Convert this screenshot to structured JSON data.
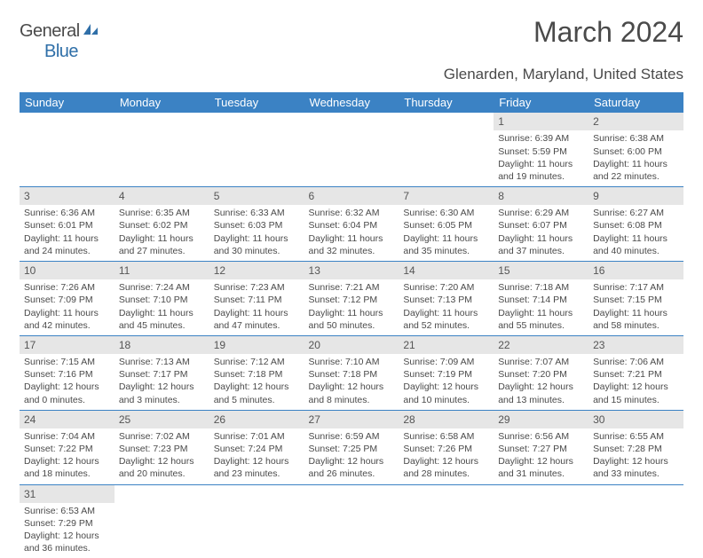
{
  "logo": {
    "first": "General",
    "second": "Blue"
  },
  "title": "March 2024",
  "location": "Glenarden, Maryland, United States",
  "weekdays": [
    "Sunday",
    "Monday",
    "Tuesday",
    "Wednesday",
    "Thursday",
    "Friday",
    "Saturday"
  ],
  "colors": {
    "header_bg": "#3b82c4",
    "header_text": "#ffffff",
    "daynum_bg": "#e6e6e6",
    "border": "#3b82c4",
    "text": "#4a4a4a"
  },
  "grid": [
    [
      null,
      null,
      null,
      null,
      null,
      {
        "n": "1",
        "sr": "Sunrise: 6:39 AM",
        "ss": "Sunset: 5:59 PM",
        "dl": "Daylight: 11 hours and 19 minutes."
      },
      {
        "n": "2",
        "sr": "Sunrise: 6:38 AM",
        "ss": "Sunset: 6:00 PM",
        "dl": "Daylight: 11 hours and 22 minutes."
      }
    ],
    [
      {
        "n": "3",
        "sr": "Sunrise: 6:36 AM",
        "ss": "Sunset: 6:01 PM",
        "dl": "Daylight: 11 hours and 24 minutes."
      },
      {
        "n": "4",
        "sr": "Sunrise: 6:35 AM",
        "ss": "Sunset: 6:02 PM",
        "dl": "Daylight: 11 hours and 27 minutes."
      },
      {
        "n": "5",
        "sr": "Sunrise: 6:33 AM",
        "ss": "Sunset: 6:03 PM",
        "dl": "Daylight: 11 hours and 30 minutes."
      },
      {
        "n": "6",
        "sr": "Sunrise: 6:32 AM",
        "ss": "Sunset: 6:04 PM",
        "dl": "Daylight: 11 hours and 32 minutes."
      },
      {
        "n": "7",
        "sr": "Sunrise: 6:30 AM",
        "ss": "Sunset: 6:05 PM",
        "dl": "Daylight: 11 hours and 35 minutes."
      },
      {
        "n": "8",
        "sr": "Sunrise: 6:29 AM",
        "ss": "Sunset: 6:07 PM",
        "dl": "Daylight: 11 hours and 37 minutes."
      },
      {
        "n": "9",
        "sr": "Sunrise: 6:27 AM",
        "ss": "Sunset: 6:08 PM",
        "dl": "Daylight: 11 hours and 40 minutes."
      }
    ],
    [
      {
        "n": "10",
        "sr": "Sunrise: 7:26 AM",
        "ss": "Sunset: 7:09 PM",
        "dl": "Daylight: 11 hours and 42 minutes."
      },
      {
        "n": "11",
        "sr": "Sunrise: 7:24 AM",
        "ss": "Sunset: 7:10 PM",
        "dl": "Daylight: 11 hours and 45 minutes."
      },
      {
        "n": "12",
        "sr": "Sunrise: 7:23 AM",
        "ss": "Sunset: 7:11 PM",
        "dl": "Daylight: 11 hours and 47 minutes."
      },
      {
        "n": "13",
        "sr": "Sunrise: 7:21 AM",
        "ss": "Sunset: 7:12 PM",
        "dl": "Daylight: 11 hours and 50 minutes."
      },
      {
        "n": "14",
        "sr": "Sunrise: 7:20 AM",
        "ss": "Sunset: 7:13 PM",
        "dl": "Daylight: 11 hours and 52 minutes."
      },
      {
        "n": "15",
        "sr": "Sunrise: 7:18 AM",
        "ss": "Sunset: 7:14 PM",
        "dl": "Daylight: 11 hours and 55 minutes."
      },
      {
        "n": "16",
        "sr": "Sunrise: 7:17 AM",
        "ss": "Sunset: 7:15 PM",
        "dl": "Daylight: 11 hours and 58 minutes."
      }
    ],
    [
      {
        "n": "17",
        "sr": "Sunrise: 7:15 AM",
        "ss": "Sunset: 7:16 PM",
        "dl": "Daylight: 12 hours and 0 minutes."
      },
      {
        "n": "18",
        "sr": "Sunrise: 7:13 AM",
        "ss": "Sunset: 7:17 PM",
        "dl": "Daylight: 12 hours and 3 minutes."
      },
      {
        "n": "19",
        "sr": "Sunrise: 7:12 AM",
        "ss": "Sunset: 7:18 PM",
        "dl": "Daylight: 12 hours and 5 minutes."
      },
      {
        "n": "20",
        "sr": "Sunrise: 7:10 AM",
        "ss": "Sunset: 7:18 PM",
        "dl": "Daylight: 12 hours and 8 minutes."
      },
      {
        "n": "21",
        "sr": "Sunrise: 7:09 AM",
        "ss": "Sunset: 7:19 PM",
        "dl": "Daylight: 12 hours and 10 minutes."
      },
      {
        "n": "22",
        "sr": "Sunrise: 7:07 AM",
        "ss": "Sunset: 7:20 PM",
        "dl": "Daylight: 12 hours and 13 minutes."
      },
      {
        "n": "23",
        "sr": "Sunrise: 7:06 AM",
        "ss": "Sunset: 7:21 PM",
        "dl": "Daylight: 12 hours and 15 minutes."
      }
    ],
    [
      {
        "n": "24",
        "sr": "Sunrise: 7:04 AM",
        "ss": "Sunset: 7:22 PM",
        "dl": "Daylight: 12 hours and 18 minutes."
      },
      {
        "n": "25",
        "sr": "Sunrise: 7:02 AM",
        "ss": "Sunset: 7:23 PM",
        "dl": "Daylight: 12 hours and 20 minutes."
      },
      {
        "n": "26",
        "sr": "Sunrise: 7:01 AM",
        "ss": "Sunset: 7:24 PM",
        "dl": "Daylight: 12 hours and 23 minutes."
      },
      {
        "n": "27",
        "sr": "Sunrise: 6:59 AM",
        "ss": "Sunset: 7:25 PM",
        "dl": "Daylight: 12 hours and 26 minutes."
      },
      {
        "n": "28",
        "sr": "Sunrise: 6:58 AM",
        "ss": "Sunset: 7:26 PM",
        "dl": "Daylight: 12 hours and 28 minutes."
      },
      {
        "n": "29",
        "sr": "Sunrise: 6:56 AM",
        "ss": "Sunset: 7:27 PM",
        "dl": "Daylight: 12 hours and 31 minutes."
      },
      {
        "n": "30",
        "sr": "Sunrise: 6:55 AM",
        "ss": "Sunset: 7:28 PM",
        "dl": "Daylight: 12 hours and 33 minutes."
      }
    ],
    [
      {
        "n": "31",
        "sr": "Sunrise: 6:53 AM",
        "ss": "Sunset: 7:29 PM",
        "dl": "Daylight: 12 hours and 36 minutes."
      },
      null,
      null,
      null,
      null,
      null,
      null
    ]
  ]
}
